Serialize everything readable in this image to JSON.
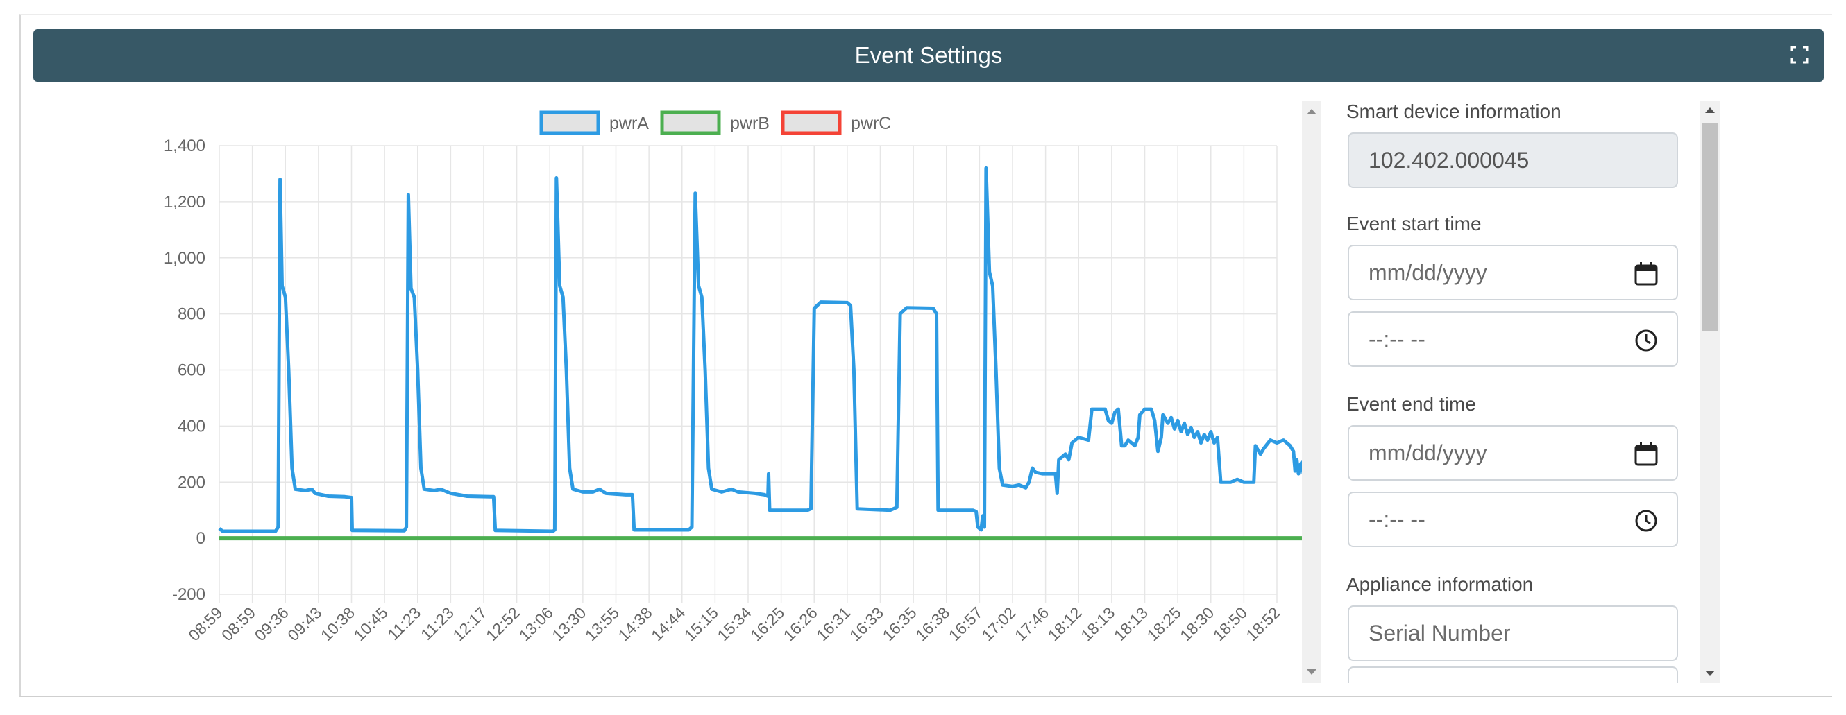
{
  "header": {
    "title": "Event Settings",
    "expand_icon": "expand-icon"
  },
  "form": {
    "device_label": "Smart device information",
    "device_value": "102.402.000045",
    "start_label": "Event start time",
    "start_date_placeholder": "mm/dd/yyyy",
    "start_time_placeholder": "--:-- --",
    "end_label": "Event end time",
    "end_date_placeholder": "mm/dd/yyyy",
    "end_time_placeholder": "--:-- --",
    "appliance_label": "Appliance information",
    "serial_placeholder": "Serial Number"
  },
  "chart_data": {
    "type": "line",
    "ylim": [
      -200,
      1400
    ],
    "yticks": [
      -200,
      0,
      200,
      400,
      600,
      800,
      1000,
      1200,
      1400
    ],
    "ytick_labels": [
      "-200",
      "0",
      "200",
      "400",
      "600",
      "800",
      "1,000",
      "1,200",
      "1,400"
    ],
    "categories": [
      "08:59",
      "08:59",
      "09:36",
      "09:43",
      "10:38",
      "10:45",
      "11:23",
      "11:23",
      "12:17",
      "12:52",
      "13:06",
      "13:30",
      "13:55",
      "14:38",
      "14:44",
      "15:15",
      "15:34",
      "16:25",
      "16:26",
      "16:31",
      "16:33",
      "16:35",
      "16:38",
      "16:57",
      "17:02",
      "17:46",
      "18:12",
      "18:13",
      "18:13",
      "18:25",
      "18:30",
      "18:50",
      "18:52"
    ],
    "legend": [
      "pwrA",
      "pwrB",
      "pwrC"
    ],
    "series": [
      {
        "name": "pwrA",
        "color": "#2d9be3",
        "points": [
          [
            0,
            35
          ],
          [
            0.1,
            25
          ],
          [
            1.7,
            25
          ],
          [
            1.78,
            40
          ],
          [
            1.84,
            1280
          ],
          [
            1.9,
            900
          ],
          [
            2.0,
            860
          ],
          [
            2.1,
            600
          ],
          [
            2.2,
            250
          ],
          [
            2.3,
            175
          ],
          [
            2.6,
            170
          ],
          [
            2.8,
            175
          ],
          [
            2.9,
            160
          ],
          [
            3.3,
            150
          ],
          [
            3.8,
            148
          ],
          [
            4.0,
            145
          ],
          [
            4.02,
            28
          ],
          [
            5.5,
            27
          ],
          [
            5.6,
            27
          ],
          [
            5.66,
            40
          ],
          [
            5.72,
            1225
          ],
          [
            5.8,
            890
          ],
          [
            5.9,
            860
          ],
          [
            6.0,
            600
          ],
          [
            6.1,
            250
          ],
          [
            6.2,
            175
          ],
          [
            6.5,
            170
          ],
          [
            6.7,
            175
          ],
          [
            7.0,
            160
          ],
          [
            7.5,
            150
          ],
          [
            8.2,
            148
          ],
          [
            8.3,
            148
          ],
          [
            8.35,
            28
          ],
          [
            10.1,
            25
          ],
          [
            10.15,
            30
          ],
          [
            10.2,
            1285
          ],
          [
            10.3,
            900
          ],
          [
            10.4,
            860
          ],
          [
            10.5,
            600
          ],
          [
            10.6,
            250
          ],
          [
            10.7,
            175
          ],
          [
            11.0,
            165
          ],
          [
            11.3,
            165
          ],
          [
            11.5,
            175
          ],
          [
            11.7,
            160
          ],
          [
            12.3,
            155
          ],
          [
            12.5,
            155
          ],
          [
            12.55,
            30
          ],
          [
            14.2,
            30
          ],
          [
            14.3,
            40
          ],
          [
            14.4,
            1230
          ],
          [
            14.5,
            900
          ],
          [
            14.6,
            860
          ],
          [
            14.7,
            600
          ],
          [
            14.8,
            250
          ],
          [
            14.9,
            175
          ],
          [
            15.2,
            165
          ],
          [
            15.5,
            175
          ],
          [
            15.7,
            165
          ],
          [
            16.2,
            160
          ],
          [
            16.5,
            155
          ],
          [
            16.6,
            150
          ],
          [
            16.62,
            230
          ],
          [
            16.65,
            100
          ],
          [
            17.8,
            100
          ],
          [
            17.9,
            105
          ],
          [
            18.0,
            820
          ],
          [
            18.2,
            842
          ],
          [
            19.0,
            840
          ],
          [
            19.1,
            830
          ],
          [
            19.2,
            600
          ],
          [
            19.3,
            105
          ],
          [
            20.3,
            100
          ],
          [
            20.5,
            110
          ],
          [
            20.6,
            800
          ],
          [
            20.8,
            822
          ],
          [
            21.6,
            820
          ],
          [
            21.7,
            800
          ],
          [
            21.75,
            100
          ],
          [
            22.8,
            100
          ],
          [
            22.9,
            95
          ],
          [
            22.95,
            40
          ],
          [
            23.05,
            30
          ],
          [
            23.1,
            80
          ],
          [
            23.15,
            40
          ],
          [
            23.2,
            1320
          ],
          [
            23.3,
            950
          ],
          [
            23.4,
            900
          ],
          [
            23.5,
            600
          ],
          [
            23.6,
            250
          ],
          [
            23.7,
            190
          ],
          [
            24.0,
            185
          ],
          [
            24.2,
            190
          ],
          [
            24.4,
            180
          ],
          [
            24.5,
            200
          ],
          [
            24.6,
            250
          ],
          [
            24.7,
            235
          ],
          [
            24.9,
            230
          ],
          [
            25.3,
            230
          ],
          [
            25.35,
            160
          ],
          [
            25.4,
            280
          ],
          [
            25.6,
            300
          ],
          [
            25.7,
            280
          ],
          [
            25.8,
            340
          ],
          [
            26.0,
            360
          ],
          [
            26.3,
            350
          ],
          [
            26.4,
            460
          ],
          [
            26.8,
            460
          ],
          [
            26.9,
            420
          ],
          [
            27.0,
            410
          ],
          [
            27.1,
            450
          ],
          [
            27.2,
            460
          ],
          [
            27.3,
            330
          ],
          [
            27.4,
            330
          ],
          [
            27.5,
            350
          ],
          [
            27.7,
            330
          ],
          [
            27.8,
            360
          ],
          [
            27.85,
            440
          ],
          [
            28.0,
            460
          ],
          [
            28.2,
            460
          ],
          [
            28.3,
            420
          ],
          [
            28.4,
            310
          ],
          [
            28.5,
            360
          ],
          [
            28.55,
            440
          ],
          [
            28.7,
            410
          ],
          [
            28.8,
            430
          ],
          [
            28.9,
            390
          ],
          [
            29.0,
            420
          ],
          [
            29.1,
            380
          ],
          [
            29.2,
            410
          ],
          [
            29.3,
            370
          ],
          [
            29.4,
            395
          ],
          [
            29.5,
            360
          ],
          [
            29.6,
            380
          ],
          [
            29.7,
            340
          ],
          [
            29.8,
            370
          ],
          [
            29.9,
            350
          ],
          [
            30.0,
            380
          ],
          [
            30.1,
            340
          ],
          [
            30.2,
            360
          ],
          [
            30.3,
            200
          ],
          [
            30.6,
            200
          ],
          [
            30.8,
            210
          ],
          [
            31.0,
            200
          ],
          [
            31.3,
            200
          ],
          [
            31.35,
            330
          ],
          [
            31.5,
            300
          ],
          [
            31.6,
            320
          ],
          [
            31.8,
            350
          ],
          [
            32.0,
            340
          ],
          [
            32.2,
            350
          ],
          [
            32.4,
            330
          ],
          [
            32.5,
            310
          ],
          [
            32.55,
            240
          ],
          [
            32.6,
            280
          ],
          [
            32.65,
            230
          ],
          [
            32.7,
            260
          ],
          [
            32.75,
            270
          ],
          [
            32.8,
            230
          ]
        ]
      },
      {
        "name": "pwrB",
        "color": "#4caf50",
        "points": [
          [
            0,
            0
          ],
          [
            32.8,
            0
          ]
        ]
      },
      {
        "name": "pwrC",
        "color": "#f44336",
        "points": []
      }
    ],
    "grid": true,
    "legend_position": "top-center"
  }
}
